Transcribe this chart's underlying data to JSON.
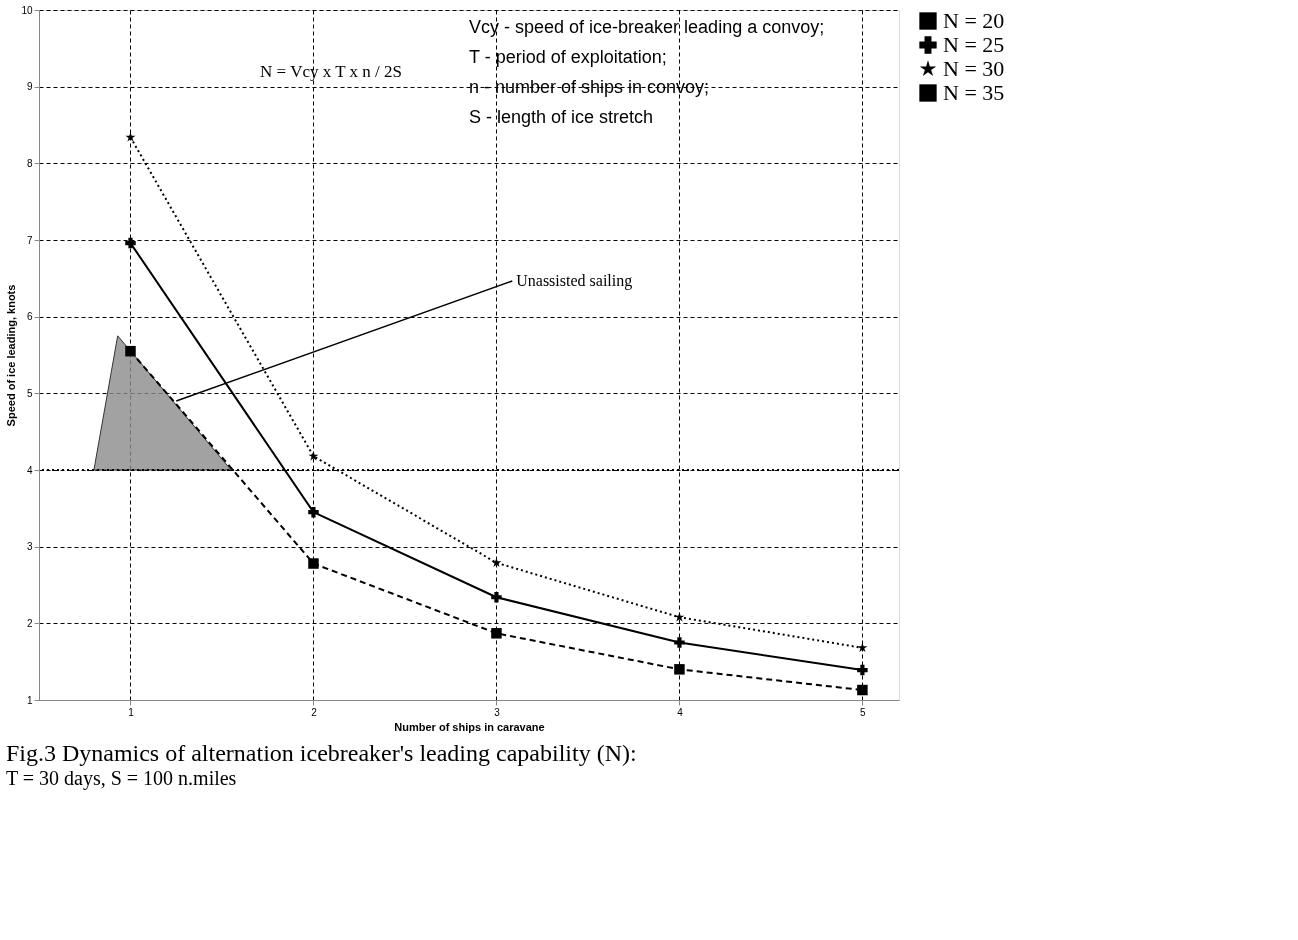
{
  "chart_data": {
    "type": "line",
    "title": "Fig.3  Dynamics of alternation icebreaker's leading capability (N):",
    "subtitle": "T = 30 days,  S = 100 n.miles",
    "xlabel": "Number of ships in caravane",
    "ylabel": "Speed of ice leading, knots",
    "x": [
      1,
      2,
      3,
      4,
      5
    ],
    "series": [
      {
        "name": "N = 20",
        "color": "#000000",
        "values": [
          5.55,
          2.78,
          1.87,
          1.4,
          1.13
        ],
        "marker": "square",
        "line_style": "dashed"
      },
      {
        "name": "N = 25",
        "color": "#000000",
        "values": [
          6.96,
          3.45,
          2.34,
          1.75,
          1.39
        ],
        "marker": "cross",
        "line_style": "solid"
      },
      {
        "name": "N = 30",
        "color": "#000000",
        "values": [
          8.34,
          4.18,
          2.79,
          2.08,
          1.68
        ],
        "marker": "star",
        "line_style": "dotted"
      },
      {
        "name": "N = 35",
        "color": "#000000",
        "values": [
          null,
          null,
          null,
          null,
          null
        ],
        "marker": "square",
        "line_style": "solid"
      },
      {
        "type": "area",
        "color": "#8c8c8c",
        "x": [
          0.8,
          0.93,
          1.55
        ],
        "values": [
          4.0,
          5.75,
          4.0
        ]
      }
    ],
    "xlim": [
      0.5,
      5.2
    ],
    "xticks": [
      1,
      2,
      3,
      4,
      5
    ],
    "ylim": [
      1,
      10
    ],
    "yticks": [
      1,
      2,
      3,
      4,
      5,
      6,
      7,
      8,
      9,
      10
    ],
    "ref_lines": [
      {
        "axis": "y",
        "value": 4,
        "line_style": "dotted"
      }
    ],
    "annotations": [
      {
        "text": "Unassisted sailing",
        "x": 1.25,
        "y": 4.9
      },
      "N = Vcy x T x n / 2S",
      "Vcy - speed of ice-breaker leading a convoy;",
      "T - period of exploitation;",
      "n - number of ships in convoy;",
      "S - length of ice stretch"
    ],
    "grid": true,
    "legend": "right"
  }
}
